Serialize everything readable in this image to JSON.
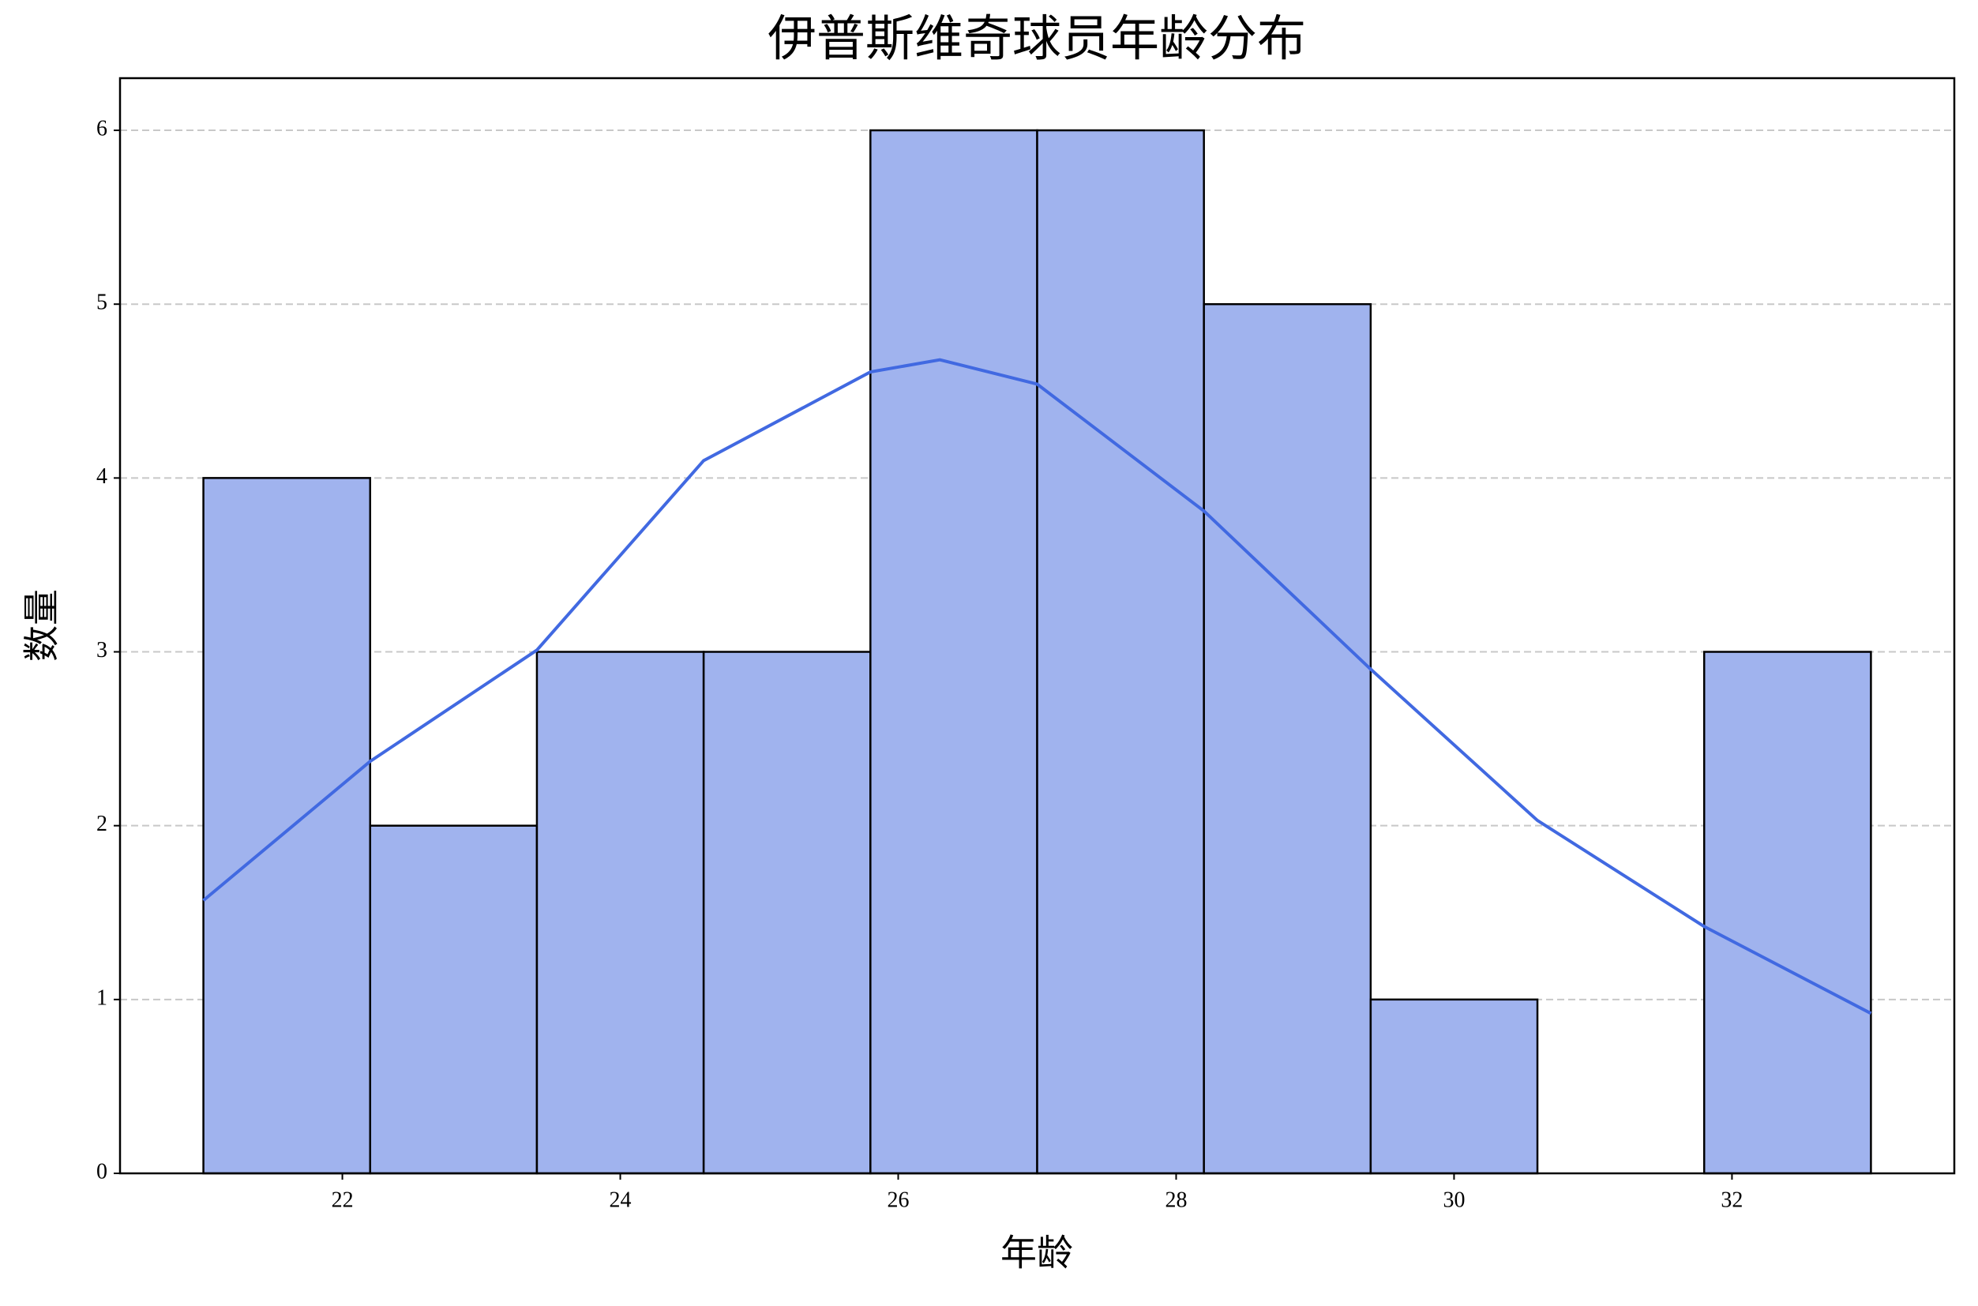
{
  "chart_data": {
    "type": "histogram",
    "title": "伊普斯维奇球员年龄分布",
    "x_label": "年龄",
    "y_label": "数量",
    "bins": [
      21,
      22.2,
      23.4,
      24.6,
      25.8,
      27,
      28.2,
      29.4,
      30.6,
      31.8,
      33
    ],
    "values": [
      4,
      2,
      3,
      3,
      6,
      6,
      5,
      1,
      0,
      3
    ],
    "color": "#a0b3ee",
    "edge_color": "#000000",
    "kde": {
      "color": "#4169e1",
      "x": [
        21,
        22.2,
        23.4,
        24.6,
        25.8,
        26.3,
        27,
        28.2,
        29.4,
        30.6,
        31.8,
        33
      ],
      "values": [
        1.57,
        2.37,
        3.01,
        4.1,
        4.61,
        4.68,
        4.54,
        3.81,
        2.9,
        2.03,
        1.42,
        0.92
      ]
    },
    "xlim": [
      20.4,
      33.6
    ],
    "ylim": [
      0,
      6.3
    ],
    "xticks": [
      22,
      24,
      26,
      28,
      30,
      32
    ],
    "yticks": [
      0,
      1,
      2,
      3,
      4,
      5,
      6
    ],
    "grid": "y"
  }
}
